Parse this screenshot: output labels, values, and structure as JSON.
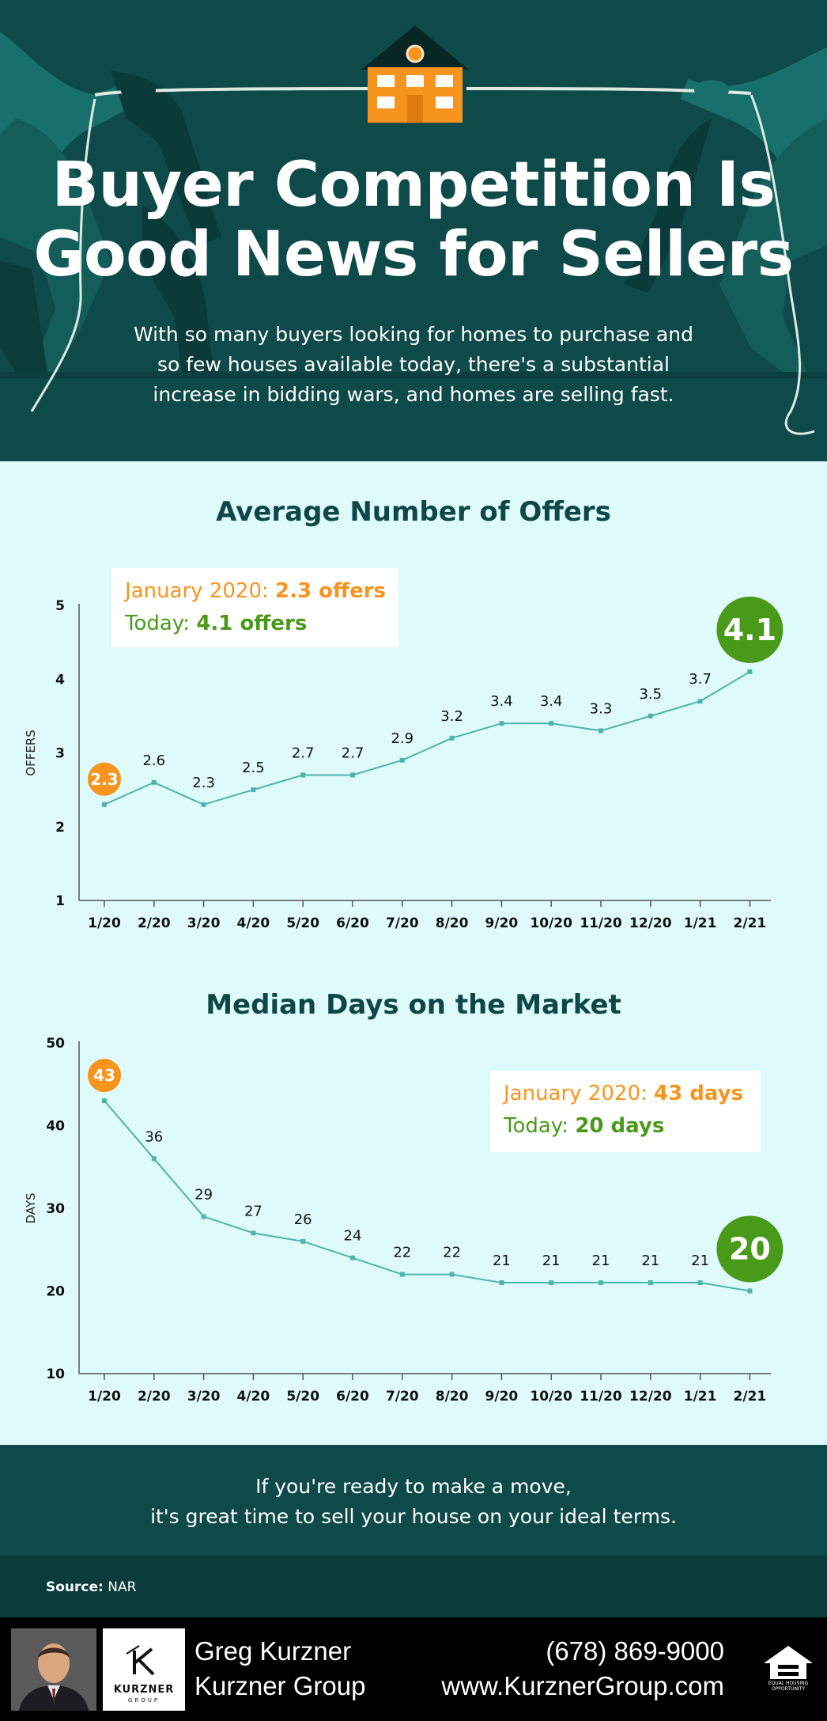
{
  "header": {
    "title_line1": "Buyer Competition Is",
    "title_line2": "Good News for Sellers",
    "subtitle_line1": "With so many buyers looking for homes to purchase and",
    "subtitle_line2": "so few houses available today, there's a substantial",
    "subtitle_line3": "increase in bidding wars, and homes are selling fast."
  },
  "chart_data": [
    {
      "type": "line",
      "title": "Average Number of Offers",
      "ylabel": "OFFERS",
      "xlabel": "",
      "categories": [
        "1/20",
        "2/20",
        "3/20",
        "4/20",
        "5/20",
        "6/20",
        "7/20",
        "8/20",
        "9/20",
        "10/20",
        "11/20",
        "12/20",
        "1/21",
        "2/21"
      ],
      "values": [
        2.3,
        2.6,
        2.3,
        2.5,
        2.7,
        2.7,
        2.9,
        3.2,
        3.4,
        3.4,
        3.3,
        3.5,
        3.7,
        4.1
      ],
      "labels": [
        "2.3",
        "2.6",
        "2.3",
        "2.5",
        "2.7",
        "2.7",
        "2.9",
        "3.2",
        "3.4",
        "3.4",
        "3.3",
        "3.5",
        "3.7",
        "4.1"
      ],
      "ylim": [
        1,
        5
      ],
      "yticks": [
        "1",
        "2",
        "3",
        "4",
        "5"
      ],
      "grid": false,
      "callout": {
        "first_prefix": "January 2020: ",
        "first_value": "2.3 offers",
        "last_prefix": "Today: ",
        "last_value": "4.1 offers"
      },
      "colors": {
        "line": "#4fb3ad",
        "first": "#f7941d",
        "last": "#4a9a1a"
      }
    },
    {
      "type": "line",
      "title": "Median Days on the Market",
      "ylabel": "DAYS",
      "xlabel": "",
      "categories": [
        "1/20",
        "2/20",
        "3/20",
        "4/20",
        "5/20",
        "6/20",
        "7/20",
        "8/20",
        "9/20",
        "10/20",
        "11/20",
        "12/20",
        "1/21",
        "2/21"
      ],
      "values": [
        43,
        36,
        29,
        27,
        26,
        24,
        22,
        22,
        21,
        21,
        21,
        21,
        21,
        20
      ],
      "labels": [
        "43",
        "36",
        "29",
        "27",
        "26",
        "24",
        "22",
        "22",
        "21",
        "21",
        "21",
        "21",
        "21",
        "20"
      ],
      "ylim": [
        10,
        50
      ],
      "yticks": [
        "10",
        "20",
        "30",
        "40",
        "50"
      ],
      "grid": false,
      "callout": {
        "first_prefix": "January 2020: ",
        "first_value": "43 days",
        "last_prefix": "Today: ",
        "last_value": "20 days"
      },
      "colors": {
        "line": "#4fb3ad",
        "first": "#f7941d",
        "last": "#4a9a1a"
      }
    }
  ],
  "cta": {
    "line1": "If you're ready to make a move,",
    "line2": "it's great time to sell your house on your ideal terms."
  },
  "source": {
    "label": "Source:",
    "value": "NAR"
  },
  "footer": {
    "agent_name": "Greg Kurzner",
    "company": "Kurzner Group",
    "phone": "(678) 869-9000",
    "website": "www.KurznerGroup.com",
    "logo_name": "KURZNER",
    "logo_sub": "GROUP",
    "ehl_line1": "EQUAL HOUSING",
    "ehl_line2": "OPPORTUNITY"
  },
  "colors": {
    "hero_bg": "#0f4a4a",
    "chart_bg": "#dffafa",
    "title_teal": "#0d4747",
    "accent_orange": "#f7941d",
    "accent_green": "#4a9a1a",
    "line_teal": "#4fb3ad"
  }
}
